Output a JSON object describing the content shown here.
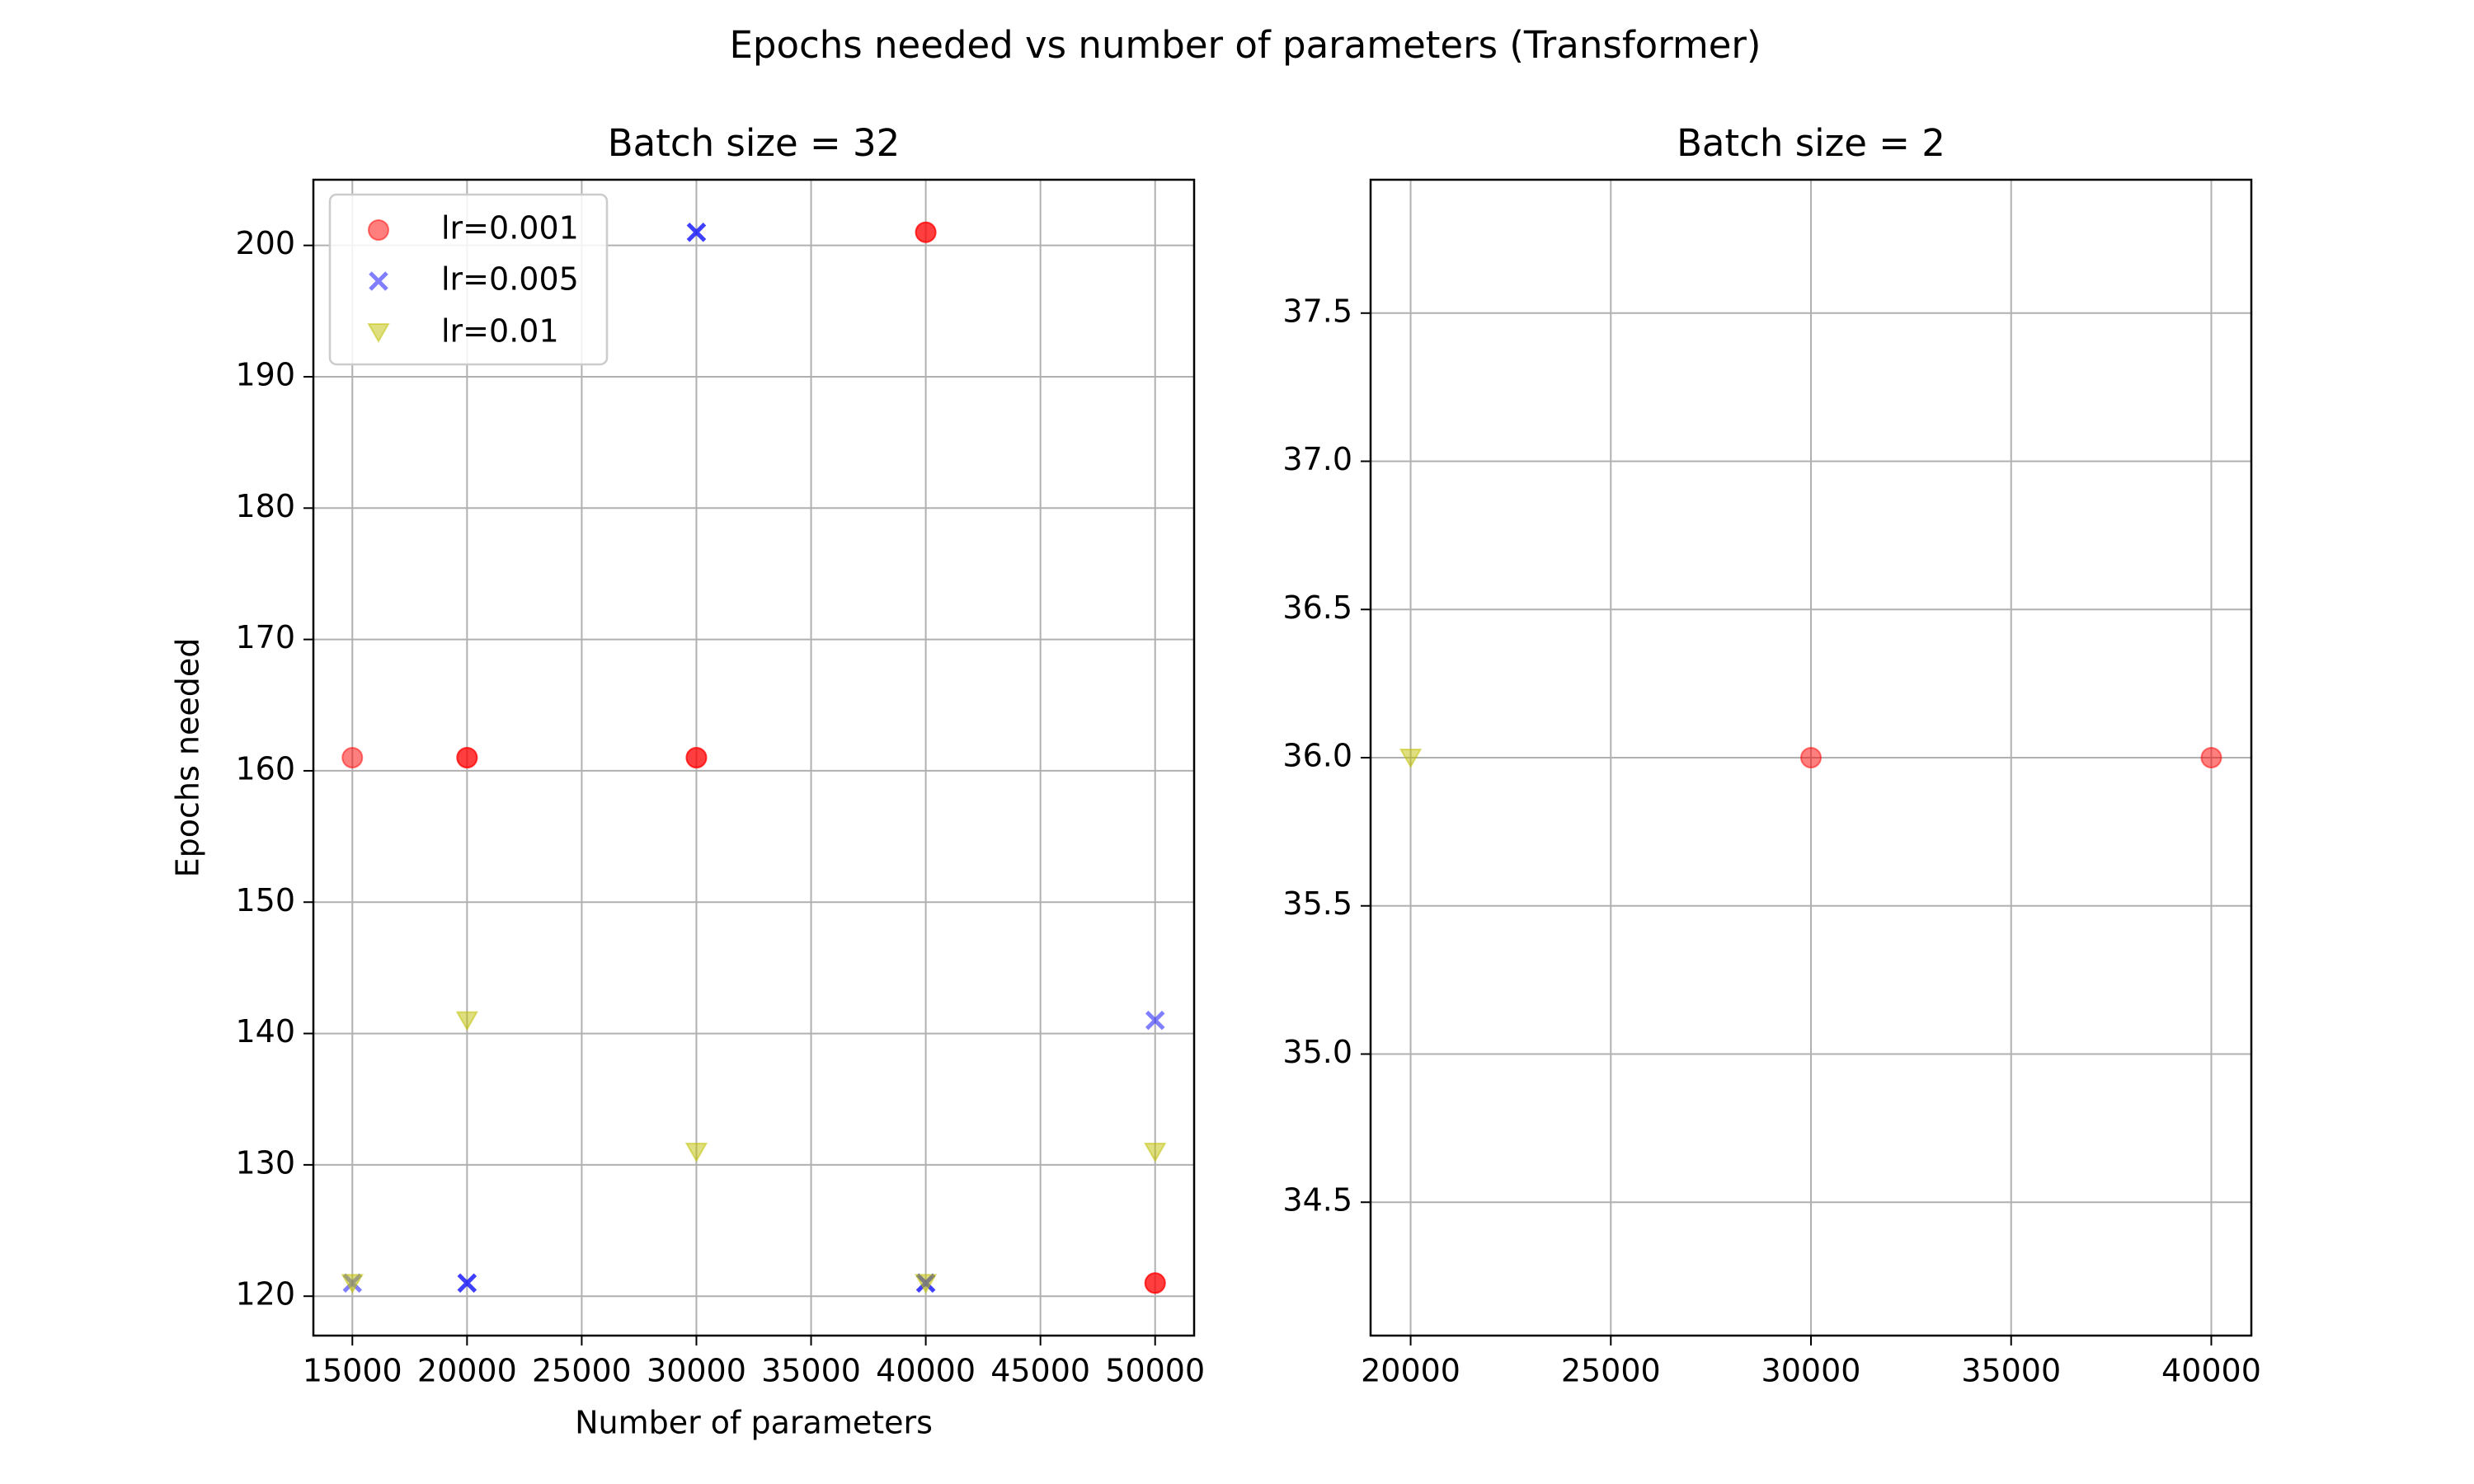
{
  "figure": {
    "suptitle": "Epochs needed vs number of parameters (Transformer)"
  },
  "chart_data": [
    {
      "type": "scatter",
      "title": "Batch size = 32",
      "xlabel": "Number of parameters",
      "ylabel": "Epochs needed",
      "xlim": [
        13300,
        51700
      ],
      "ylim": [
        117,
        205
      ],
      "xticks": [
        15000,
        20000,
        25000,
        30000,
        35000,
        40000,
        45000,
        50000
      ],
      "xtick_labels": [
        "15000",
        "20000",
        "25000",
        "30000",
        "35000",
        "40000",
        "45000",
        "50000"
      ],
      "yticks": [
        120,
        130,
        140,
        150,
        160,
        170,
        180,
        190,
        200
      ],
      "ytick_labels": [
        "120",
        "130",
        "140",
        "150",
        "160",
        "170",
        "180",
        "190",
        "200"
      ],
      "grid": true,
      "legend": {
        "position": "upper-left"
      },
      "series": [
        {
          "name": "lr=0.001",
          "marker": "circle",
          "color": "#ff0000",
          "points": [
            [
              15000,
              161
            ],
            [
              20000,
              161
            ],
            [
              20000,
              161
            ],
            [
              30000,
              161
            ],
            [
              30000,
              161
            ],
            [
              40000,
              201
            ],
            [
              40000,
              201
            ],
            [
              50000,
              121
            ],
            [
              50000,
              121
            ]
          ]
        },
        {
          "name": "lr=0.005",
          "marker": "x",
          "color": "#0000ff",
          "points": [
            [
              15000,
              121
            ],
            [
              20000,
              121
            ],
            [
              20000,
              121
            ],
            [
              30000,
              201
            ],
            [
              30000,
              201
            ],
            [
              40000,
              121
            ],
            [
              40000,
              121
            ],
            [
              50000,
              141
            ]
          ]
        },
        {
          "name": "lr=0.01",
          "marker": "triangle-down",
          "color": "#bfbf00",
          "points": [
            [
              15000,
              121
            ],
            [
              20000,
              141
            ],
            [
              30000,
              131
            ],
            [
              40000,
              121
            ],
            [
              50000,
              131
            ]
          ]
        }
      ]
    },
    {
      "type": "scatter",
      "title": "Batch size = 2",
      "xlabel": "",
      "ylabel": "",
      "xlim": [
        19000,
        41000
      ],
      "ylim": [
        34.05,
        37.95
      ],
      "xticks": [
        20000,
        25000,
        30000,
        35000,
        40000
      ],
      "xtick_labels": [
        "20000",
        "25000",
        "30000",
        "35000",
        "40000"
      ],
      "yticks": [
        34.5,
        35.0,
        35.5,
        36.0,
        36.5,
        37.0,
        37.5
      ],
      "ytick_labels": [
        "34.5",
        "35.0",
        "35.5",
        "36.0",
        "36.5",
        "37.0",
        "37.5"
      ],
      "grid": true,
      "series": [
        {
          "name": "lr=0.001",
          "marker": "circle",
          "color": "#ff0000",
          "points": [
            [
              30000,
              36
            ],
            [
              40000,
              36
            ]
          ]
        },
        {
          "name": "lr=0.01",
          "marker": "triangle-down",
          "color": "#bfbf00",
          "points": [
            [
              20000,
              36
            ]
          ]
        }
      ]
    }
  ]
}
